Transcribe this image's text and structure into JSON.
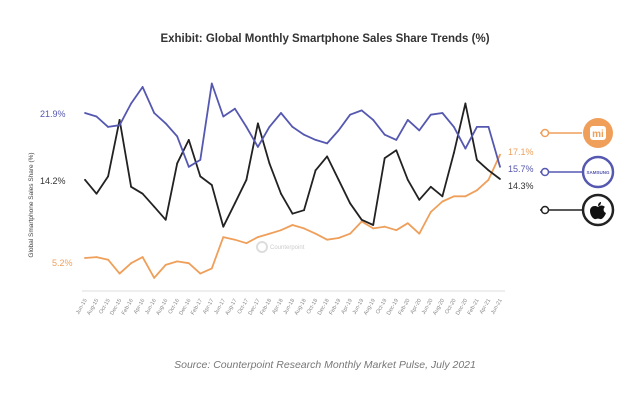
{
  "chart_data": {
    "type": "line",
    "title": "Exhibit: Global Monthly Smartphone Sales Share Trends (%)",
    "ylabel": "Global Smartphone Sales Share (%)",
    "xlabel": "",
    "source": "Source: Counterpoint Research Monthly Market Pulse, July 2021",
    "watermark": "Counterpoint",
    "ylim": [
      0,
      26
    ],
    "grid": false,
    "legend_placement": "right",
    "categories": [
      "Jun-15",
      "Aug-15",
      "Oct-15",
      "Dec-15",
      "Feb-16",
      "Apr-16",
      "Jun-16",
      "Aug-16",
      "Oct-16",
      "Dec-16",
      "Feb-17",
      "Apr-17",
      "Jun-17",
      "Aug-17",
      "Oct-17",
      "Dec-17",
      "Feb-18",
      "Apr-18",
      "Jun-18",
      "Aug-18",
      "Oct-18",
      "Dec-18",
      "Feb-19",
      "Apr-19",
      "Jun-19",
      "Aug-19",
      "Oct-19",
      "Dec-19",
      "Feb-20",
      "Apr-20",
      "Jun-20",
      "Aug-20",
      "Oct-20",
      "Dec-20",
      "Feb-21",
      "Apr-21",
      "Jun-21"
    ],
    "series": [
      {
        "name": "Samsung",
        "legend_logo": "SAMSUNG",
        "color": "#5558b0",
        "start_label": "21.9%",
        "end_label": "15.7%",
        "values": [
          21.9,
          21.5,
          20.3,
          20.5,
          23.0,
          24.9,
          21.9,
          20.7,
          19.2,
          15.7,
          16.5,
          25.3,
          21.5,
          22.4,
          20.3,
          18.0,
          20.3,
          21.9,
          20.3,
          19.4,
          18.8,
          18.4,
          19.9,
          21.7,
          22.2,
          21.1,
          19.4,
          18.8,
          21.1,
          19.9,
          21.7,
          21.9,
          20.3,
          17.8,
          20.3,
          20.3,
          15.7
        ]
      },
      {
        "name": "Apple",
        "legend_logo": "",
        "color": "#222222",
        "start_label": "14.2%",
        "end_label": "14.3%",
        "values": [
          14.2,
          12.6,
          14.6,
          21.1,
          13.4,
          12.6,
          11.1,
          9.6,
          16.1,
          18.8,
          14.6,
          13.6,
          8.8,
          11.5,
          14.2,
          20.7,
          16.1,
          12.6,
          10.3,
          10.7,
          15.3,
          16.9,
          14.2,
          11.5,
          9.6,
          9.0,
          16.7,
          17.6,
          14.2,
          11.9,
          13.4,
          12.3,
          17.3,
          23.0,
          16.5,
          15.3,
          14.3
        ]
      },
      {
        "name": "Xiaomi",
        "legend_logo": "mi",
        "color": "#ef9f5a",
        "start_label": "5.2%",
        "end_label": "17.1%",
        "values": [
          5.2,
          5.3,
          5.0,
          3.4,
          4.6,
          5.3,
          2.9,
          4.4,
          4.8,
          4.6,
          3.4,
          4.0,
          7.6,
          7.3,
          6.9,
          7.6,
          8.0,
          8.4,
          9.0,
          8.6,
          8.0,
          7.3,
          7.5,
          8.0,
          9.4,
          8.6,
          8.8,
          8.4,
          9.2,
          8.0,
          10.5,
          11.7,
          12.3,
          12.3,
          13.0,
          14.2,
          17.1
        ]
      }
    ]
  }
}
